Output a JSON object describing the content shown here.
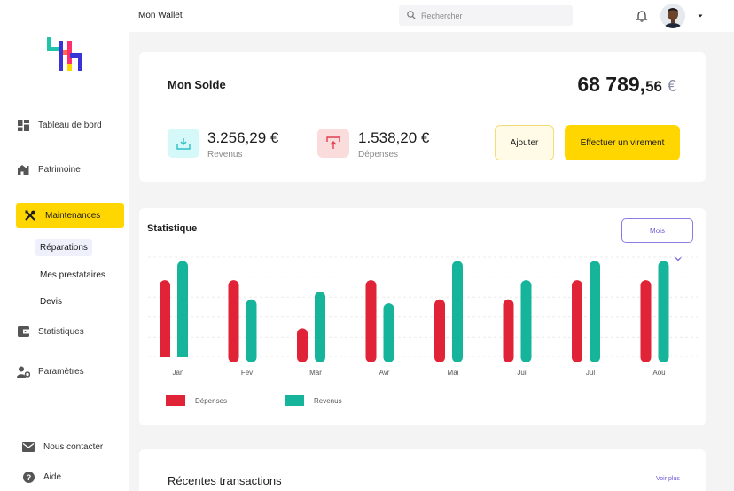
{
  "app_title": "Mon Wallet",
  "search": {
    "placeholder": "Rechercher"
  },
  "sidebar": {
    "items": [
      {
        "label": "Tableau de bord",
        "icon": "dashboard-icon"
      },
      {
        "label": "Patrimoine",
        "icon": "house-icon"
      },
      {
        "label": "Maintenances",
        "icon": "tools-icon",
        "active": true
      },
      {
        "label": "Statistiques",
        "icon": "wallet-icon"
      },
      {
        "label": "Paramètres",
        "icon": "user-settings-icon"
      }
    ],
    "sub_items": [
      {
        "label": "Réparations",
        "active": true
      },
      {
        "label": "Mes prestataires"
      },
      {
        "label": "Devis"
      }
    ],
    "footer": [
      {
        "label": "Nous contacter",
        "icon": "mail-icon"
      },
      {
        "label": "Aide",
        "icon": "help-icon"
      }
    ]
  },
  "solde": {
    "title": "Mon Solde",
    "balance_int": "68 789,",
    "balance_dec": "56",
    "currency": "€",
    "revenus": {
      "value": "3.256,29 €",
      "label": "Revenus"
    },
    "depenses": {
      "value": "1.538,20 €",
      "label": "Dépenses"
    },
    "add_label": "Ajouter",
    "transfer_label": "Effectuer un virement"
  },
  "stats": {
    "title": "Statistique",
    "period_label": "Mois"
  },
  "chart_data": {
    "type": "bar",
    "categories": [
      "Jan",
      "Fev",
      "Mar",
      "Avr",
      "Mai",
      "Jui",
      "Jul",
      "Aoû"
    ],
    "series": [
      {
        "name": "Dépenses",
        "color": "#E02336",
        "values": [
          4,
          4,
          1.5,
          4,
          3,
          3,
          4,
          4
        ]
      },
      {
        "name": "Revenus",
        "color": "#16B49B",
        "values": [
          5,
          3,
          3.4,
          2.8,
          5,
          4,
          5,
          5
        ]
      }
    ],
    "ylim": [
      0,
      5.2
    ],
    "grid": true,
    "legend": "bottom-left"
  },
  "transactions": {
    "title": "Récentes transactions",
    "see_more": "Voir plus"
  },
  "colors": {
    "accent": "#FFD600",
    "depenses": "#E02336",
    "revenus": "#16B49B",
    "purple": "#6D5CD6"
  }
}
